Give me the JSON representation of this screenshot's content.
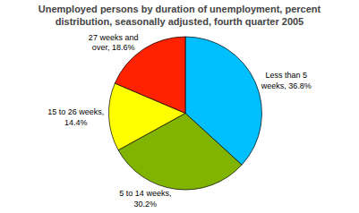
{
  "chart_data": {
    "type": "pie",
    "title": "Unemployed persons by duration of unemployment, percent\ndistribution, seasonally adjusted, fourth quarter 2005",
    "categories": [
      "Less than 5\nweeks, 36.8%",
      "5 to 14 weeks,\n30.2%",
      "15 to 26 weeks,\n14.4%",
      "27 weeks and\nover, 18.6%"
    ],
    "values": [
      36.8,
      30.2,
      14.4,
      18.6
    ],
    "colors": [
      "#00BFFF",
      "#80B400",
      "#FFFF00",
      "#FF2200"
    ]
  }
}
